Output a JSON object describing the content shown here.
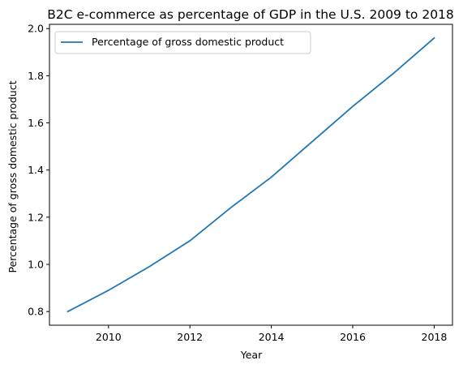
{
  "chart_data": {
    "type": "line",
    "title": "B2C e-commerce as percentage of GDP in the U.S. 2009 to 2018",
    "xlabel": "Year",
    "ylabel": "Percentage of gross domestic product",
    "x": [
      2009,
      2010,
      2011,
      2012,
      2013,
      2014,
      2015,
      2016,
      2017,
      2018
    ],
    "series": [
      {
        "name": "Percentage of gross domestic product",
        "values": [
          0.8,
          0.89,
          0.99,
          1.1,
          1.24,
          1.37,
          1.52,
          1.67,
          1.81,
          1.96
        ],
        "color": "#1f77b4"
      }
    ],
    "xticks": [
      2010,
      2012,
      2014,
      2016,
      2018
    ],
    "xtick_labels": [
      "2010",
      "2012",
      "2014",
      "2016",
      "2018"
    ],
    "yticks": [
      0.8,
      1.0,
      1.2,
      1.4,
      1.6,
      1.8,
      2.0
    ],
    "ytick_labels": [
      "0.8",
      "1.0",
      "1.2",
      "1.4",
      "1.6",
      "1.8",
      "2.0"
    ],
    "xlim": [
      2008.55,
      2018.45
    ],
    "ylim": [
      0.742,
      2.018
    ],
    "grid": false,
    "legend_position": "upper-left"
  }
}
